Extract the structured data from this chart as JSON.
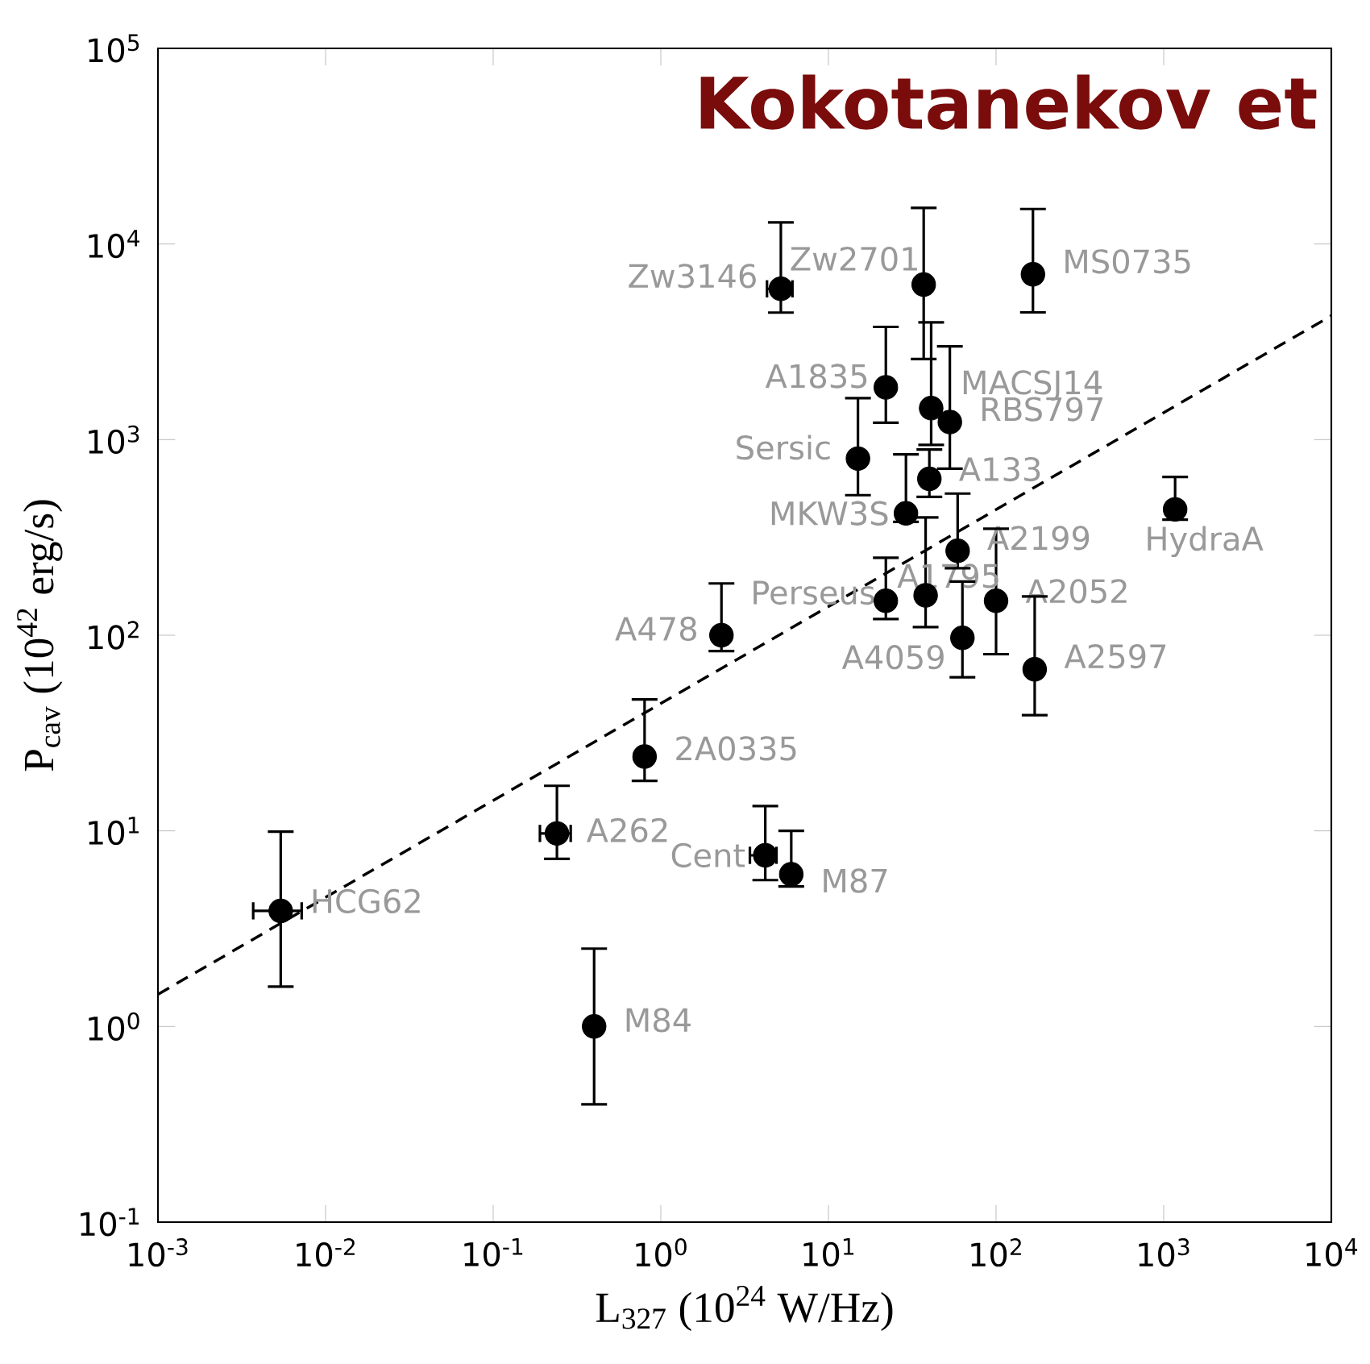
{
  "chart_data": {
    "type": "scatter",
    "title": "Kokotanekov et",
    "xlabel": "L$_{327}$ (10$^{24}$ W/Hz)",
    "ylabel": "P$_{cav}$ (10$^{42}$ erg/s)",
    "log": "xy",
    "marker": "circle",
    "xlim": [
      0.001,
      10000
    ],
    "ylim": [
      0.1,
      100000
    ],
    "xticks": [
      {
        "value": 0.001,
        "label": "10$^{-3}$"
      },
      {
        "value": 0.01,
        "label": "10$^{-2}$"
      },
      {
        "value": 0.1,
        "label": "10$^{-1}$"
      },
      {
        "value": 1,
        "label": "10$^{0}$"
      },
      {
        "value": 10,
        "label": "10$^{1}$"
      },
      {
        "value": 100,
        "label": "10$^{2}$"
      },
      {
        "value": 1000,
        "label": "10$^{3}$"
      },
      {
        "value": 10000,
        "label": "10$^{4}$"
      }
    ],
    "yticks": [
      {
        "value": 0.1,
        "label": "10$^{-1}$"
      },
      {
        "value": 1,
        "label": "10$^{0}$"
      },
      {
        "value": 10,
        "label": "10$^{1}$"
      },
      {
        "value": 100,
        "label": "10$^{2}$"
      },
      {
        "value": 1000,
        "label": "10$^{3}$"
      },
      {
        "value": 10000,
        "label": "10$^{4}$"
      },
      {
        "value": 100000,
        "label": "10$^{5}$"
      }
    ],
    "series": [
      {
        "color": "#000000",
        "x": [
          0.0054,
          0.24,
          0.4,
          0.8,
          2.3,
          4.2,
          6.0,
          5.2,
          22,
          22,
          15,
          29,
          37,
          38,
          40,
          41,
          53,
          59,
          63,
          100,
          170,
          166,
          1170
        ],
        "values": [
          3.9,
          9.7,
          1.0,
          24,
          100,
          7.5,
          6.0,
          5900,
          150,
          1850,
          800,
          420,
          6200,
          160,
          630,
          1450,
          1230,
          270,
          97,
          150,
          67,
          7000,
          440
        ],
        "errors": [
          [
            1.6,
            9.9
          ],
          [
            7.2,
            17
          ],
          [
            0.4,
            2.5
          ],
          [
            18,
            47
          ],
          [
            83,
            184
          ],
          [
            5.6,
            13.4
          ],
          [
            5.2,
            10
          ],
          [
            4460,
            12900
          ],
          [
            121,
            249
          ],
          [
            1220,
            3770
          ],
          [
            520,
            1630
          ],
          [
            380,
            840
          ],
          [
            2580,
            15300
          ],
          [
            110,
            400
          ],
          [
            510,
            890
          ],
          [
            940,
            3980
          ],
          [
            710,
            3000
          ],
          [
            220,
            530
          ],
          [
            61,
            188
          ],
          [
            80,
            350
          ],
          [
            39,
            158
          ],
          [
            4470,
            15100
          ],
          [
            390,
            645
          ]
        ],
        "xerrors": [
          [
            0.0037,
            0.0072
          ],
          [
            0.19,
            0.29
          ],
          null,
          null,
          null,
          [
            3.4,
            4.9
          ],
          null,
          [
            4.3,
            6.1
          ],
          null,
          null,
          null,
          null,
          null,
          null,
          null,
          null,
          null,
          null,
          null,
          null,
          null,
          null,
          null
        ]
      },
      {
        "type": "line",
        "marker": "none",
        "color": "#000000",
        "line_style": "dashed",
        "x": [
          0.001,
          10000
        ],
        "values": [
          1.46,
          4300
        ]
      }
    ],
    "annotations": [
      {
        "text": "HCG62",
        "x": 0.0054,
        "y": 3.9
      },
      {
        "text": "A262",
        "x": 0.24,
        "y": 9.7
      },
      {
        "text": "M84",
        "x": 0.4,
        "y": 1.0
      },
      {
        "text": "2A0335",
        "x": 0.8,
        "y": 24
      },
      {
        "text": "A478",
        "x": 2.3,
        "y": 100
      },
      {
        "text": "Cent",
        "x": 4.2,
        "y": 7.5
      },
      {
        "text": "M87",
        "x": 6.0,
        "y": 6.0
      },
      {
        "text": "Zw3146",
        "x": 5.2,
        "y": 5900
      },
      {
        "text": "Perseus",
        "x": 22,
        "y": 150
      },
      {
        "text": "A1835",
        "x": 22,
        "y": 1850
      },
      {
        "text": "Sersic",
        "x": 15,
        "y": 800
      },
      {
        "text": "MKW3S",
        "x": 29,
        "y": 420
      },
      {
        "text": "Zw2701",
        "x": 37,
        "y": 6200
      },
      {
        "text": "A1795",
        "x": 38,
        "y": 160
      },
      {
        "text": "A133",
        "x": 40,
        "y": 630
      },
      {
        "text": "MACSJ14",
        "x": 41,
        "y": 1450
      },
      {
        "text": "RBS797",
        "x": 53,
        "y": 1230
      },
      {
        "text": "A2199",
        "x": 59,
        "y": 270
      },
      {
        "text": "A4059",
        "x": 63,
        "y": 97
      },
      {
        "text": "A2052",
        "x": 100,
        "y": 150
      },
      {
        "text": "A2597",
        "x": 170,
        "y": 67
      },
      {
        "text": "MS0735",
        "x": 166,
        "y": 7000
      },
      {
        "text": "HydraA",
        "x": 1170,
        "y": 440
      }
    ]
  }
}
